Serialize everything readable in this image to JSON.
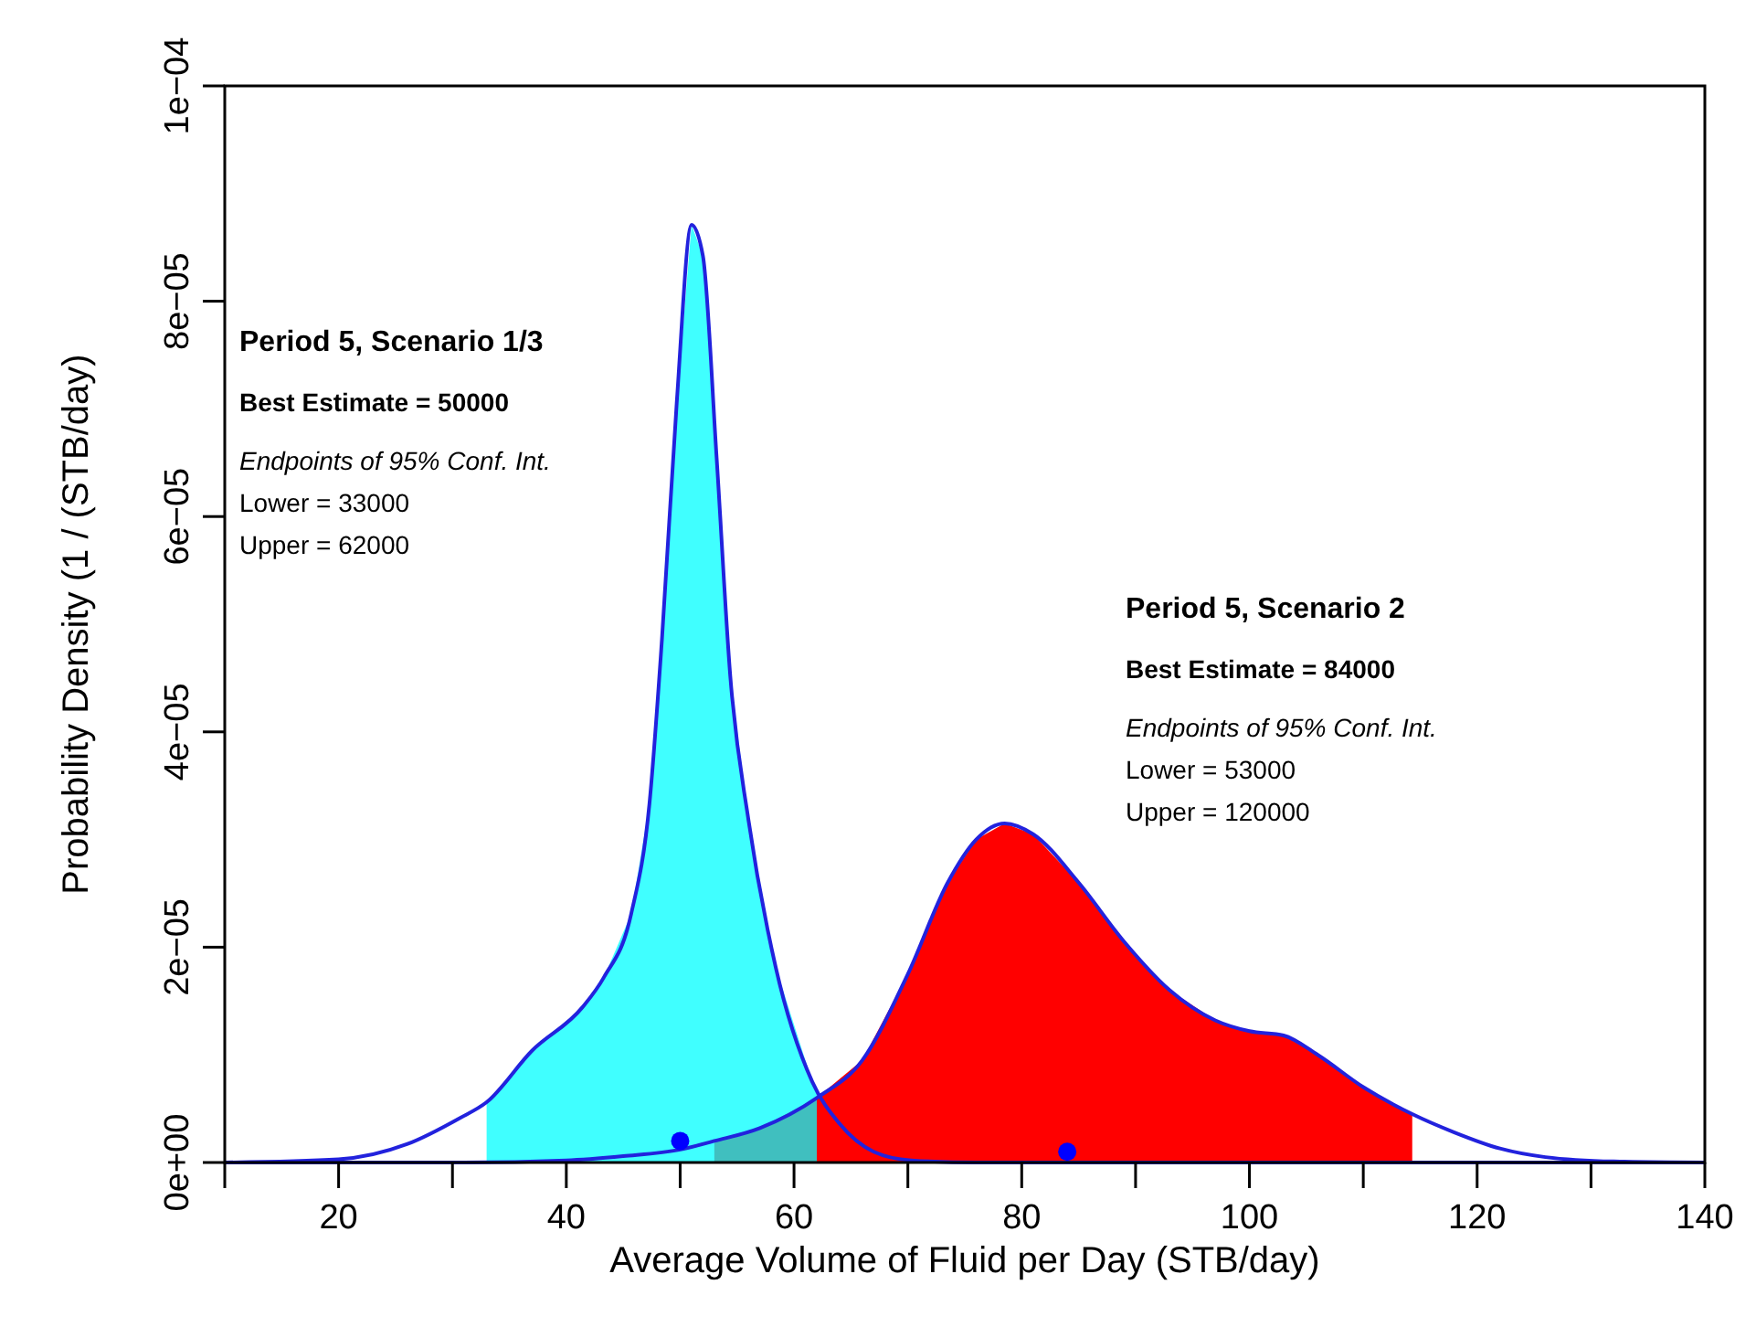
{
  "chart_data": {
    "type": "line",
    "xlabel": "Average Volume of Fluid per Day (STB/day)",
    "ylabel": "Probability Density (1 / (STB/day)",
    "xlim": [
      10,
      140
    ],
    "xticks": [
      {
        "value": 10,
        "label": null
      },
      20,
      {
        "value": 30,
        "label": null
      },
      40,
      {
        "value": 50,
        "label": null
      },
      60,
      {
        "value": 70,
        "label": null
      },
      80,
      {
        "value": 90,
        "label": null
      },
      100,
      {
        "value": 110,
        "label": null
      },
      120,
      {
        "value": 130,
        "label": null
      },
      140
    ],
    "ylim": [
      0,
      0.0001
    ],
    "yticks": [
      {
        "value": 0,
        "label": "0e+00"
      },
      {
        "value": 2e-05,
        "label": "2e−05"
      },
      {
        "value": 4e-05,
        "label": "4e−05"
      },
      {
        "value": 6e-05,
        "label": "6e−05"
      },
      {
        "value": 8e-05,
        "label": "8e−05"
      },
      {
        "value": 0.0001,
        "label": "1e−04"
      }
    ],
    "grid": false,
    "series": [
      {
        "type": "area",
        "color": "#ff0000",
        "x": [
          53,
          57,
          62,
          66,
          70,
          73.5,
          76,
          78.5,
          81,
          85,
          89,
          93,
          97,
          100,
          103,
          106,
          110,
          114.3
        ],
        "values": [
          2e-06,
          3.2e-06,
          6e-06,
          9.5e-06,
          1.75e-05,
          2.6e-05,
          3e-05,
          3.15e-05,
          3.05e-05,
          2.6e-05,
          2.05e-05,
          1.6e-05,
          1.32e-05,
          1.22e-05,
          1.18e-05,
          1e-05,
          7e-06,
          4.5e-06
        ]
      },
      {
        "type": "area",
        "color": "#00ffff",
        "x": [
          33,
          37,
          41.4,
          43.3,
          45.7,
          47.3,
          48.4,
          49.7,
          51,
          52,
          53.2,
          54.4,
          56,
          58.4,
          61.6,
          62
        ],
        "values": [
          5.6e-06,
          1.04e-05,
          1.44e-05,
          1.72e-05,
          2.31e-05,
          3.33e-05,
          4.86e-05,
          7.06e-05,
          8.71e-05,
          8.42e-05,
          6.55e-05,
          4.52e-05,
          3.18e-05,
          1.81e-05,
          7.5e-06,
          7e-06
        ]
      },
      {
        "color": "#2222dd",
        "x": [
          10,
          20,
          26,
          30.6,
          33,
          37,
          41.4,
          43.3,
          45.7,
          47.3,
          48.4,
          49.7,
          51,
          52,
          53.2,
          54.4,
          56,
          58.4,
          61.6,
          64,
          67,
          70.3,
          76,
          140
        ],
        "values": [
          0,
          3e-07,
          1.7e-06,
          4.1e-06,
          5.6e-06,
          1.04e-05,
          1.44e-05,
          1.72e-05,
          2.31e-05,
          3.33e-05,
          4.86e-05,
          7.06e-05,
          8.71e-05,
          8.42e-05,
          6.55e-05,
          4.52e-05,
          3.18e-05,
          1.81e-05,
          7.5e-06,
          3.6e-06,
          1e-06,
          2e-07,
          0,
          0
        ]
      },
      {
        "color": "#2222dd",
        "x": [
          10,
          30,
          40,
          45,
          50,
          53,
          57,
          62,
          66,
          70,
          73.5,
          76,
          78.5,
          81,
          85,
          89,
          93,
          97,
          100,
          103,
          106,
          110,
          114.3,
          118,
          122,
          126,
          132,
          140
        ],
        "values": [
          0,
          0,
          2e-07,
          6e-07,
          1.2e-06,
          2e-06,
          3.2e-06,
          6e-06,
          9.5e-06,
          1.75e-05,
          2.6e-05,
          3e-05,
          3.15e-05,
          3.05e-05,
          2.6e-05,
          2.05e-05,
          1.6e-05,
          1.32e-05,
          1.22e-05,
          1.18e-05,
          1e-05,
          7e-06,
          4.5e-06,
          2.8e-06,
          1.3e-06,
          5e-07,
          1e-07,
          0
        ]
      },
      {
        "type": "scatter",
        "color": "#0000ff",
        "marker": "circle",
        "x": [
          50,
          84
        ],
        "values": [
          2e-06,
          1e-06
        ]
      }
    ],
    "annotations": [
      "Period 5, Scenario 1/3",
      "Best Estimate = 50000",
      "Endpoints of 95% Conf. Int.",
      "Lower = 33000",
      "Upper = 62000",
      "Period 5, Scenario 2",
      "Best Estimate = 84000",
      "Endpoints of 95% Conf. Int.",
      "Lower = 53000",
      "Upper = 120000"
    ]
  }
}
